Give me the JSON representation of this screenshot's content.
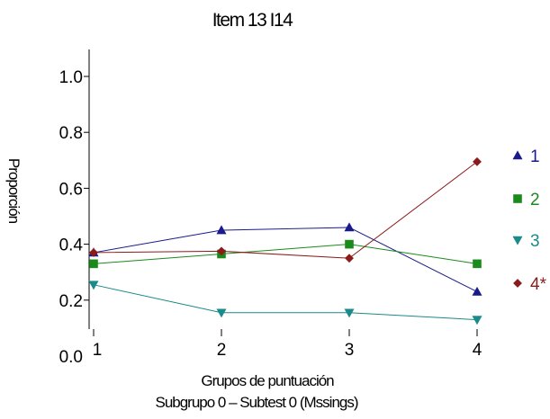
{
  "chart_data": {
    "type": "line",
    "title": "Item 13   I14",
    "xlabel": "Grupos de puntuación",
    "xlabel2": "Subgrupo 0  –  Subtest 0 (Mssings)",
    "ylabel": "Proporción",
    "x": [
      1,
      2,
      3,
      4
    ],
    "xticks": [
      "1",
      "2",
      "3",
      "4"
    ],
    "yticks": [
      "0.0",
      "0.2",
      "0.4",
      "0.6",
      "0.8",
      "1.0"
    ],
    "ylim": [
      0,
      1.05
    ],
    "grid": false,
    "legend_position": "right",
    "series": [
      {
        "name": "1",
        "values": [
          0.37,
          0.45,
          0.46,
          0.23
        ],
        "color": "#1a1a8c",
        "marker": "triangle-up"
      },
      {
        "name": "2",
        "values": [
          0.33,
          0.365,
          0.4,
          0.33
        ],
        "color": "#1a8a1a",
        "marker": "square"
      },
      {
        "name": "3",
        "values": [
          0.255,
          0.155,
          0.155,
          0.13
        ],
        "color": "#1a8a8a",
        "marker": "triangle-down"
      },
      {
        "name": "4*",
        "values": [
          0.37,
          0.375,
          0.35,
          0.695
        ],
        "color": "#8b1a1a",
        "marker": "diamond"
      }
    ]
  }
}
